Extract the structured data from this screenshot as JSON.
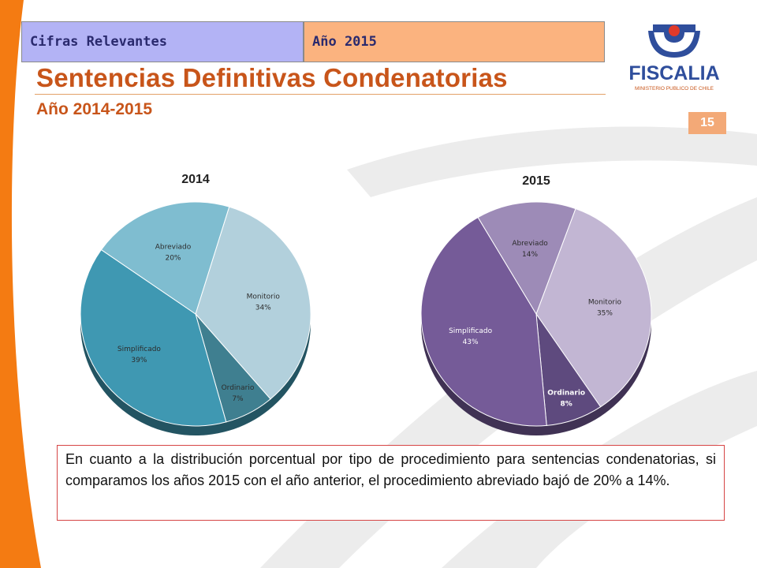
{
  "header": {
    "section_label": "Cifras Relevantes",
    "year_label": "Año 2015"
  },
  "page": {
    "title": "Sentencias Definitivas Condenatorias",
    "subtitle": "Año 2014-2015",
    "page_number": "15"
  },
  "logo": {
    "name": "FISCALIA",
    "tagline": "MINISTERIO PUBLICO DE CHILE"
  },
  "chart_data": [
    {
      "type": "pie",
      "title": "2014",
      "categories": [
        "Monitorio",
        "Ordinario",
        "Simplificado",
        "Abreviado"
      ],
      "values": [
        34,
        7,
        39,
        20
      ],
      "labels": [
        "34%",
        "7%",
        "39%",
        "20%"
      ],
      "colors": [
        "#b2d0dc",
        "#3f7f90",
        "#3f98b2",
        "#7fbdd0"
      ]
    },
    {
      "type": "pie",
      "title": "2015",
      "categories": [
        "Monitorio",
        "Ordinario",
        "Simplificado",
        "Abreviado"
      ],
      "values": [
        35,
        8,
        43,
        14
      ],
      "labels": [
        "35%",
        "8%",
        "43%",
        "14%"
      ],
      "colors": [
        "#c2b6d3",
        "#5e4a7e",
        "#755b98",
        "#9d8bb7"
      ]
    }
  ],
  "note": {
    "text": "En cuanto a la distribución porcentual por tipo de procedimiento para sentencias condenatorias, si comparamos los años 2015 con el año anterior, el procedimiento abreviado bajó de 20% a 14%."
  }
}
